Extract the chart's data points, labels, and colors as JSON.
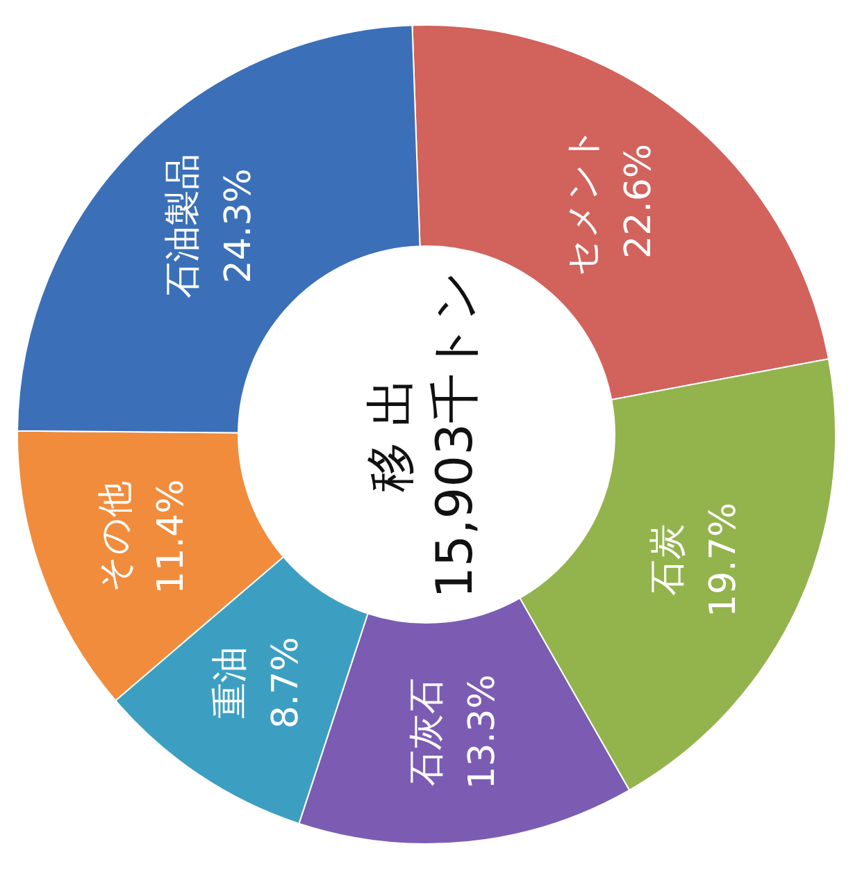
{
  "chart_data": {
    "type": "donut",
    "title": "移 出",
    "annotations": [
      "15,903千トン"
    ],
    "categories": [
      "セメント",
      "石炭",
      "石灰石",
      "重油",
      "その他",
      "石油製品"
    ],
    "values": [
      22.6,
      19.7,
      13.3,
      8.7,
      11.4,
      24.3
    ],
    "value_labels": [
      "22.6%",
      "19.7%",
      "13.3%",
      "8.7%",
      "11.4%",
      "24.3%"
    ],
    "colors": [
      "#d2625c",
      "#93b34c",
      "#7b5cb2",
      "#3c9fc2",
      "#f08c3c",
      "#3b70b8"
    ],
    "legend": false
  }
}
